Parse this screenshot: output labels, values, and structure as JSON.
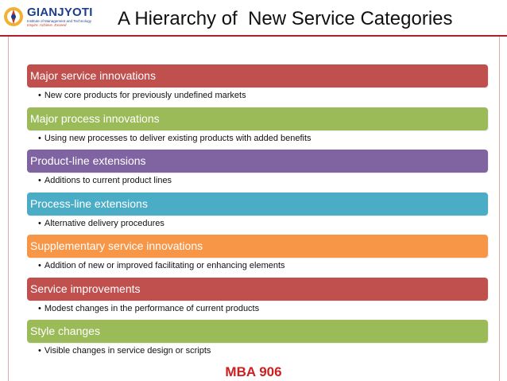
{
  "logo": {
    "name": "GIANJYOTI",
    "subtitle": "Institute of Management and Technology",
    "tagline": "Inspire. Achieve. Exceed"
  },
  "title": "A Hierarchy of  New Service Categories",
  "colors": {
    "red": "#c0504d",
    "green": "#9bbb59",
    "purple": "#8064a2",
    "teal": "#4bacc6",
    "orange": "#f79646",
    "accent_rule": "#b0202a",
    "footer": "#cc1f1f"
  },
  "items": [
    {
      "label": "Major service innovations",
      "bullet": "New core products for previously undefined markets",
      "color": "#c0504d"
    },
    {
      "label": "Major process innovations",
      "bullet": "Using new processes to deliver existing products with added benefits",
      "color": "#9bbb59"
    },
    {
      "label": "Product-line extensions",
      "bullet": "Additions to current product lines",
      "color": "#8064a2"
    },
    {
      "label": "Process-line extensions",
      "bullet": "Alternative delivery procedures",
      "color": "#4bacc6"
    },
    {
      "label": "Supplementary service innovations",
      "bullet": "Addition of new or improved facilitating or enhancing elements",
      "color": "#f79646"
    },
    {
      "label": "Service improvements",
      "bullet": "Modest changes in the performance of current products",
      "color": "#c0504d"
    },
    {
      "label": "Style changes",
      "bullet": "Visible changes in service design or scripts",
      "color": "#9bbb59"
    }
  ],
  "footer": "MBA 906"
}
